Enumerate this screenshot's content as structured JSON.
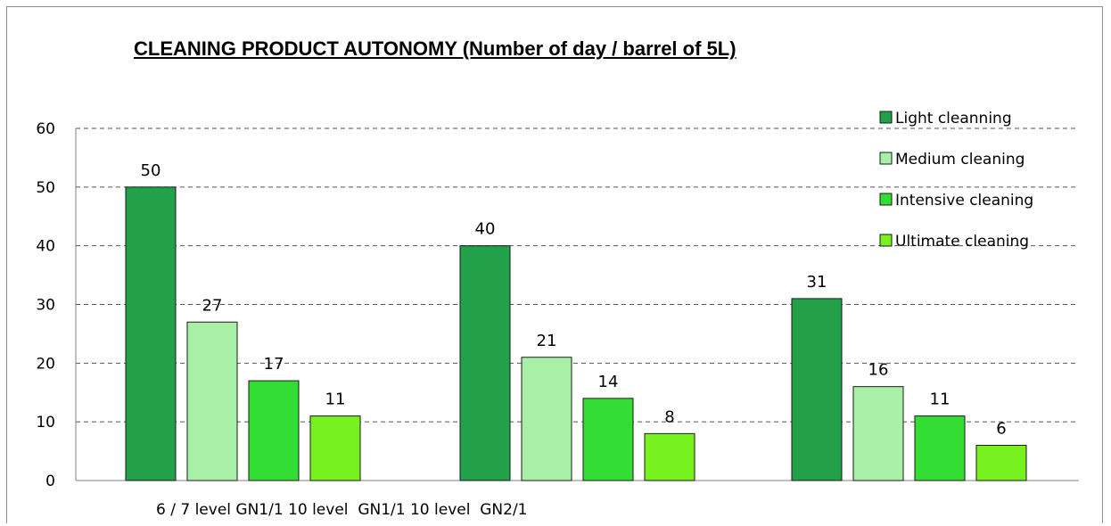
{
  "chart_data": {
    "type": "bar",
    "title": "CLEANING PRODUCT AUTONOMY (Number of day / barrel of 5L)",
    "categories": [
      "",
      "",
      ""
    ],
    "x_caption": "6 / 7 level GN1/1 10 level  GN1/1 10 level  GN2/1",
    "ylim": [
      0,
      60
    ],
    "yticks": [
      0,
      10,
      20,
      30,
      40,
      50,
      60
    ],
    "grid": true,
    "legend_position": "top-right",
    "series": [
      {
        "name": "Light cleanning",
        "color": "#23a04a",
        "values": [
          50,
          40,
          31
        ]
      },
      {
        "name": "Medium cleaning",
        "color": "#a8f0a8",
        "values": [
          27,
          21,
          16
        ]
      },
      {
        "name": "Intensive cleaning",
        "color": "#33dd33",
        "values": [
          17,
          14,
          11
        ]
      },
      {
        "name": "Ultimate cleaning",
        "color": "#77f21f",
        "values": [
          11,
          8,
          6
        ]
      }
    ]
  }
}
